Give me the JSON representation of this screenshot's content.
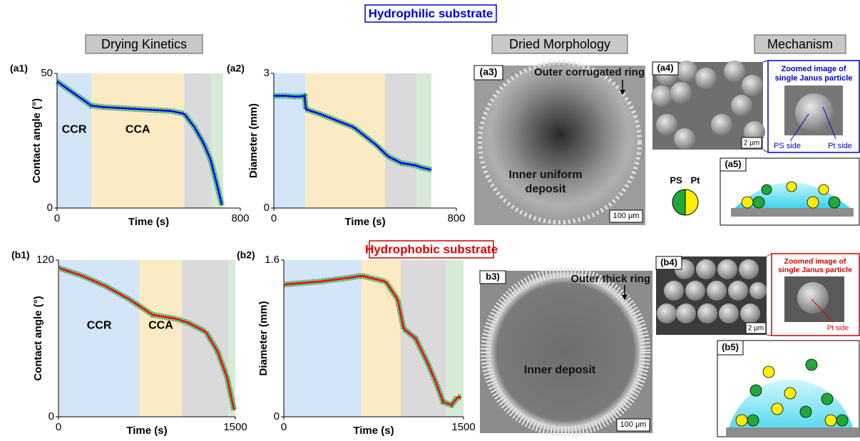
{
  "headers": {
    "hydrophilic": "Hydrophilic substrate",
    "hydrophobic": "Hydrophobic substrate",
    "kinetics": "Drying Kinetics",
    "morphology": "Dried Morphology",
    "mechanism": "Mechanism"
  },
  "chart_data": [
    {
      "type": "line",
      "panel": "(a1)",
      "xlabel": "Time (s)",
      "ylabel": "Contact angle (°)",
      "xlim": [
        0,
        800
      ],
      "xticks": [
        0,
        800
      ],
      "ylim": [
        0,
        50
      ],
      "yticks": [
        0,
        50
      ],
      "phase_bounds": [
        0,
        150,
        555,
        675,
        725
      ],
      "phase_colors": [
        "#d3e5f6",
        "#fbebc4",
        "#dadada",
        "#d6ead5"
      ],
      "phase_labels": [
        "CCR",
        "CCA"
      ],
      "x": [
        0,
        50,
        100,
        150,
        200,
        300,
        400,
        500,
        555,
        600,
        640,
        670,
        700,
        720
      ],
      "series": [
        {
          "color": "#0000ff",
          "error_color": "#1fa34a",
          "values": [
            47,
            44,
            41,
            38,
            37.5,
            37,
            36.5,
            36,
            35,
            30,
            24,
            18,
            8,
            1
          ]
        }
      ]
    },
    {
      "type": "line",
      "panel": "(a2)",
      "xlabel": "Time (s)",
      "ylabel": "Diameter (mm)",
      "xlim": [
        0,
        800
      ],
      "xticks": [
        0,
        800
      ],
      "ylim": [
        0,
        3
      ],
      "yticks": [
        0,
        3
      ],
      "phase_bounds": [
        0,
        137,
        487,
        625,
        690
      ],
      "phase_colors": [
        "#d3e5f6",
        "#fbebc4",
        "#dadada",
        "#d6ead5"
      ],
      "x": [
        0,
        50,
        100,
        135,
        140,
        200,
        250,
        300,
        350,
        400,
        450,
        500,
        560,
        620,
        650,
        690
      ],
      "series": [
        {
          "color": "#0000ff",
          "error_color": "#1fa34a",
          "values": [
            2.5,
            2.5,
            2.48,
            2.5,
            2.2,
            2.1,
            2.0,
            1.9,
            1.8,
            1.6,
            1.4,
            1.15,
            1.0,
            0.95,
            0.9,
            0.85
          ]
        }
      ]
    },
    {
      "type": "line",
      "panel": "(b1)",
      "xlabel": "Time (s)",
      "ylabel": "Contact angle (°)",
      "xlim": [
        0,
        1500
      ],
      "xticks": [
        0,
        1500
      ],
      "ylim": [
        0,
        120
      ],
      "yticks": [
        0,
        120
      ],
      "phase_bounds": [
        0,
        690,
        1045,
        1440,
        1500
      ],
      "phase_colors": [
        "#d3e5f6",
        "#fbebc4",
        "#dadada",
        "#d6ead5"
      ],
      "phase_labels": [
        "CCR",
        "CCA"
      ],
      "x": [
        0,
        200,
        400,
        600,
        800,
        1000,
        1100,
        1250,
        1350,
        1430,
        1490
      ],
      "series": [
        {
          "color": "#ff0000",
          "error_color": "#1fa34a",
          "values": [
            114,
            108,
            100,
            90,
            78,
            75,
            72,
            65,
            50,
            30,
            5
          ]
        }
      ]
    },
    {
      "type": "line",
      "panel": "(b2)",
      "xlabel": "Time (s)",
      "ylabel": "Diameter (mm)",
      "xlim": [
        0,
        1500
      ],
      "xticks": [
        0,
        1500
      ],
      "ylim": [
        0,
        1.6
      ],
      "yticks": [
        0,
        1.6
      ],
      "phase_bounds": [
        0,
        649,
        976,
        1351,
        1500
      ],
      "phase_colors": [
        "#d3e5f6",
        "#fbebc4",
        "#dadada",
        "#d6ead5"
      ],
      "x": [
        0,
        300,
        550,
        650,
        850,
        950,
        1000,
        1100,
        1200,
        1270,
        1330,
        1400,
        1450,
        1480
      ],
      "series": [
        {
          "color": "#ff0000",
          "error_color": "#1fa34a",
          "values": [
            1.35,
            1.38,
            1.42,
            1.44,
            1.38,
            1.2,
            0.9,
            0.8,
            0.55,
            0.35,
            0.15,
            0.12,
            0.2,
            0.2
          ]
        }
      ]
    }
  ],
  "images": {
    "a3": {
      "panel": "(a3)",
      "outer": "Outer corrugated ring",
      "inner": [
        "Inner uniform",
        "deposit"
      ],
      "scale": "100 μm"
    },
    "a4": {
      "panel": "(a4)",
      "zoom": [
        "Zoomed image of",
        "single Janus particle"
      ],
      "ps": "PS side",
      "pt": "Pt side",
      "scale": "2 μm"
    },
    "a5": {
      "panel": "(a5)",
      "ps": "PS",
      "pt": "Pt"
    },
    "b3": {
      "panel": "b3)",
      "outer": "Outer thick ring",
      "inner": "Inner deposit",
      "scale": "100 μm"
    },
    "b4": {
      "panel": "(b4)",
      "zoom": [
        "Zoomed image of",
        "single Janus particle"
      ],
      "pt": "Pt side",
      "scale": "2 μm"
    },
    "b5": {
      "panel": "(b5)"
    }
  }
}
